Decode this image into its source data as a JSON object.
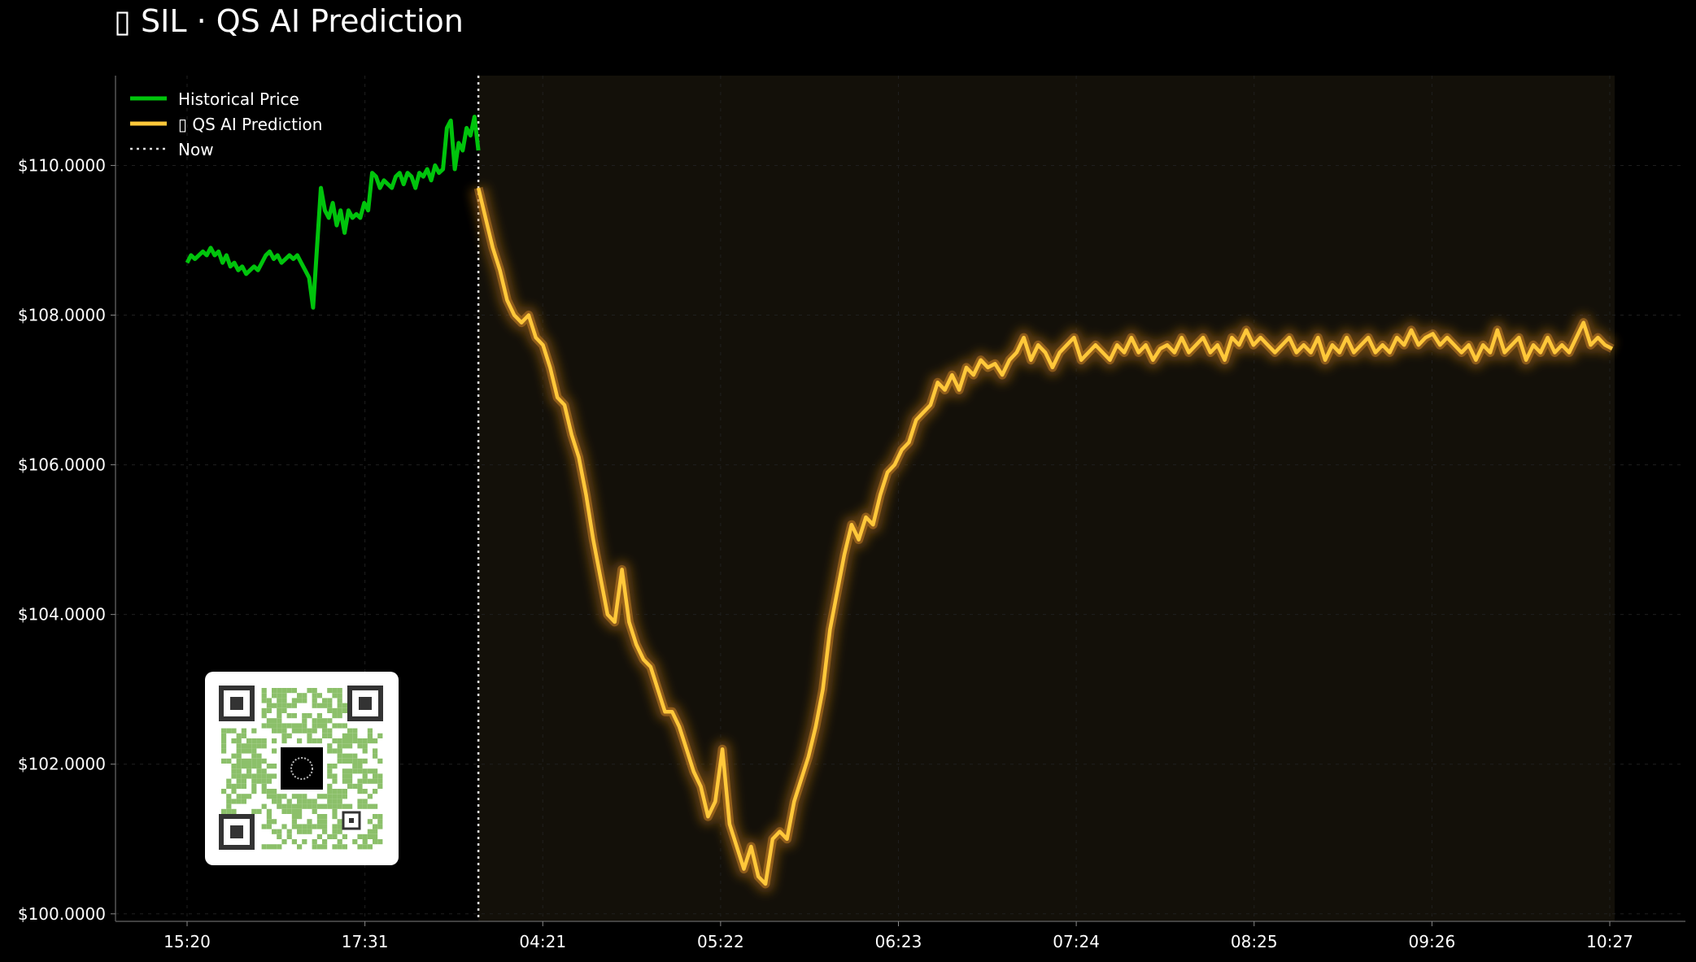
{
  "chart_data": {
    "type": "line",
    "title": "▯ SIL · QS AI Prediction",
    "xlabel": "",
    "ylabel": "",
    "ylim": [
      99.9,
      111.2
    ],
    "grid": true,
    "legend_placement": "top-left",
    "x_tick_labels": [
      "15:20",
      "17:31",
      "04:21",
      "05:22",
      "06:23",
      "07:24",
      "08:25",
      "09:26",
      "10:27"
    ],
    "y_tick_labels": [
      "$100.0000",
      "$102.0000",
      "$104.0000",
      "$106.0000",
      "$108.0000",
      "$110.0000"
    ],
    "y_tick_values": [
      100,
      102,
      104,
      106,
      108,
      110
    ],
    "now_index": 102,
    "total_points": 500,
    "series": [
      {
        "name": "Historical Price",
        "color": "#00c40c",
        "start_index": 0,
        "values": [
          108.7,
          108.8,
          108.75,
          108.8,
          108.85,
          108.8,
          108.9,
          108.8,
          108.85,
          108.7,
          108.8,
          108.65,
          108.7,
          108.6,
          108.65,
          108.55,
          108.6,
          108.65,
          108.6,
          108.7,
          108.8,
          108.85,
          108.75,
          108.8,
          108.7,
          108.75,
          108.8,
          108.75,
          108.8,
          108.7,
          108.6,
          108.5,
          108.1,
          108.9,
          109.7,
          109.4,
          109.3,
          109.5,
          109.2,
          109.4,
          109.1,
          109.4,
          109.3,
          109.35,
          109.3,
          109.5,
          109.4,
          109.9,
          109.85,
          109.7,
          109.8,
          109.75,
          109.7,
          109.85,
          109.9,
          109.75,
          109.9,
          109.85,
          109.7,
          109.9,
          109.85,
          109.95,
          109.8,
          110.0,
          109.9,
          109.95,
          110.5,
          110.6,
          109.95,
          110.3,
          110.2,
          110.5,
          110.4,
          110.65,
          110.2
        ],
        "values_note_skip": false
      },
      {
        "name": "▯ QS AI Prediction",
        "color": "#ffc83a",
        "start_index": 102,
        "values": [
          109.7,
          109.3,
          108.9,
          108.6,
          108.2,
          108.0,
          107.9,
          108.0,
          107.7,
          107.6,
          107.3,
          106.9,
          106.8,
          106.4,
          106.1,
          105.6,
          105.0,
          104.5,
          104.0,
          103.9,
          104.6,
          103.9,
          103.6,
          103.4,
          103.3,
          103.0,
          102.7,
          102.7,
          102.5,
          102.2,
          101.9,
          101.7,
          101.3,
          101.5,
          102.2,
          101.2,
          100.9,
          100.6,
          100.9,
          100.5,
          100.4,
          101.0,
          101.1,
          101.0,
          101.5,
          101.8,
          102.1,
          102.5,
          103.0,
          103.8,
          104.3,
          104.8,
          105.2,
          105.0,
          105.3,
          105.2,
          105.6,
          105.9,
          106.0,
          106.2,
          106.3,
          106.6,
          106.7,
          106.8,
          107.1,
          107.0,
          107.2,
          107.0,
          107.3,
          107.2,
          107.4,
          107.3,
          107.35,
          107.2,
          107.4,
          107.5,
          107.7,
          107.4,
          107.6,
          107.5,
          107.3,
          107.5,
          107.6,
          107.7,
          107.4,
          107.5,
          107.6,
          107.5,
          107.4,
          107.6,
          107.5,
          107.7,
          107.5,
          107.6,
          107.4,
          107.55,
          107.6,
          107.5,
          107.7,
          107.5,
          107.6,
          107.7,
          107.5,
          107.6,
          107.4,
          107.7,
          107.6,
          107.8,
          107.6,
          107.7,
          107.6,
          107.5,
          107.6,
          107.7,
          107.5,
          107.6,
          107.5,
          107.7,
          107.4,
          107.6,
          107.5,
          107.7,
          107.5,
          107.6,
          107.7,
          107.5,
          107.6,
          107.5,
          107.7,
          107.6,
          107.8,
          107.6,
          107.7,
          107.75,
          107.6,
          107.7,
          107.6,
          107.5,
          107.6,
          107.4,
          107.6,
          107.5,
          107.8,
          107.5,
          107.6,
          107.7,
          107.4,
          107.6,
          107.5,
          107.7,
          107.5,
          107.6,
          107.5,
          107.7,
          107.9,
          107.6,
          107.7,
          107.6,
          107.55
        ],
        "values_note_skip": false
      }
    ],
    "legend": [
      {
        "label": "Historical Price",
        "style": "solid",
        "color": "#00c40c"
      },
      {
        "label": "▯ QS AI Prediction",
        "style": "solid",
        "color": "#ffc83a"
      },
      {
        "label": "Now",
        "style": "dotted",
        "color": "#d8d8d8"
      }
    ]
  }
}
